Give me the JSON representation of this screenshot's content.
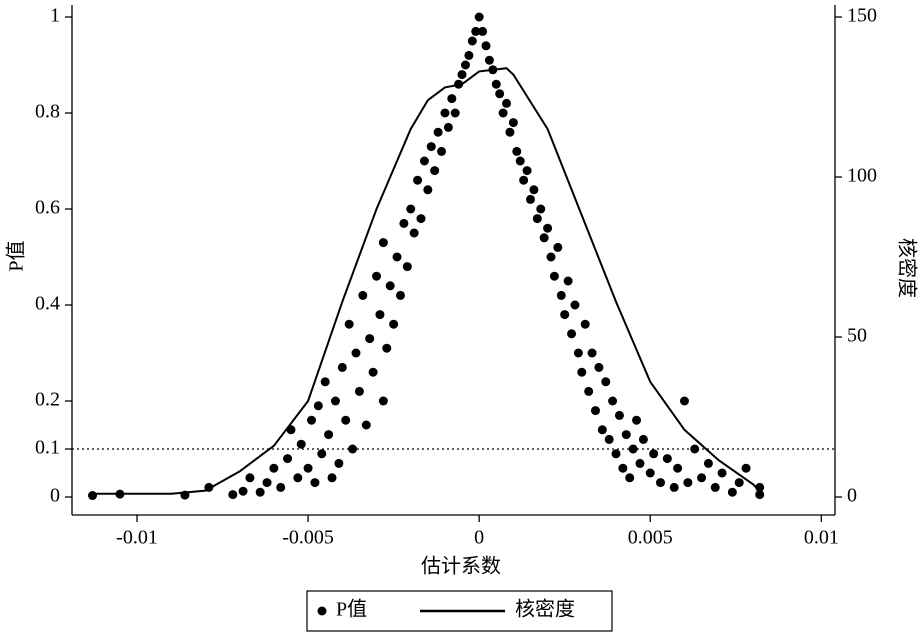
{
  "chart_data": {
    "type": "scatter",
    "x_label": "估计系数",
    "y_label": "P值",
    "y2_label": "核密度",
    "xlim": [
      -0.0119,
      0.0104
    ],
    "ylim": [
      -0.0375,
      1.025
    ],
    "y2lim": [
      -5.625,
      153.75
    ],
    "xticks": [
      -0.01,
      -0.005,
      0,
      0.005,
      0.01
    ],
    "yticks": [
      0,
      0.1,
      0.2,
      0.4,
      0.6,
      0.8,
      1
    ],
    "y2ticks": [
      0,
      50,
      100,
      150
    ],
    "reference_line": 0.1,
    "series": [
      {
        "name": "P值",
        "color": "#000000",
        "x": [
          -0.0113,
          -0.0105,
          -0.0086,
          -0.0079,
          -0.0072,
          -0.0069,
          -0.0067,
          -0.0064,
          -0.0062,
          -0.006,
          -0.0058,
          -0.0056,
          -0.0055,
          -0.0053,
          -0.0052,
          -0.005,
          -0.0049,
          -0.0048,
          -0.0047,
          -0.0046,
          -0.0045,
          -0.0044,
          -0.0043,
          -0.0042,
          -0.0041,
          -0.004,
          -0.0039,
          -0.0038,
          -0.0037,
          -0.0036,
          -0.0035,
          -0.0034,
          -0.0033,
          -0.0032,
          -0.0031,
          -0.003,
          -0.0029,
          -0.0028,
          -0.0028,
          -0.0027,
          -0.0026,
          -0.0025,
          -0.0024,
          -0.0023,
          -0.0022,
          -0.0021,
          -0.002,
          -0.0019,
          -0.0018,
          -0.0017,
          -0.0016,
          -0.0015,
          -0.0014,
          -0.0013,
          -0.0012,
          -0.0011,
          -0.001,
          -0.0009,
          -0.0008,
          -0.0007,
          -0.0006,
          -0.0005,
          -0.0004,
          -0.0003,
          -0.0002,
          -0.0001,
          0,
          0.0001,
          0.0002,
          0.0003,
          0.0004,
          0.0005,
          0.0006,
          0.0007,
          0.0008,
          0.0009,
          0.001,
          0.0011,
          0.0012,
          0.0013,
          0.0014,
          0.0015,
          0.0016,
          0.0017,
          0.0018,
          0.0019,
          0.002,
          0.0021,
          0.0022,
          0.0023,
          0.0024,
          0.0025,
          0.0026,
          0.0027,
          0.0028,
          0.0029,
          0.003,
          0.0031,
          0.0032,
          0.0033,
          0.0034,
          0.0035,
          0.0036,
          0.0037,
          0.0038,
          0.0039,
          0.004,
          0.0041,
          0.0042,
          0.0043,
          0.0044,
          0.0045,
          0.0046,
          0.0047,
          0.0048,
          0.005,
          0.0051,
          0.0053,
          0.0055,
          0.0057,
          0.0058,
          0.006,
          0.0061,
          0.0063,
          0.0065,
          0.0067,
          0.0069,
          0.0071,
          0.0074,
          0.0076,
          0.0078,
          0.0082,
          0.0082
        ],
        "values": [
          0.003,
          0.006,
          0.004,
          0.02,
          0.005,
          0.012,
          0.04,
          0.01,
          0.03,
          0.06,
          0.02,
          0.08,
          0.14,
          0.04,
          0.11,
          0.06,
          0.16,
          0.03,
          0.19,
          0.09,
          0.24,
          0.13,
          0.04,
          0.2,
          0.07,
          0.27,
          0.16,
          0.36,
          0.1,
          0.3,
          0.22,
          0.42,
          0.15,
          0.33,
          0.26,
          0.46,
          0.38,
          0.2,
          0.53,
          0.31,
          0.44,
          0.36,
          0.5,
          0.42,
          0.57,
          0.48,
          0.6,
          0.55,
          0.66,
          0.58,
          0.7,
          0.64,
          0.73,
          0.68,
          0.76,
          0.72,
          0.8,
          0.77,
          0.83,
          0.8,
          0.86,
          0.88,
          0.9,
          0.92,
          0.95,
          0.97,
          1,
          0.97,
          0.94,
          0.91,
          0.89,
          0.86,
          0.84,
          0.8,
          0.82,
          0.76,
          0.78,
          0.72,
          0.7,
          0.66,
          0.68,
          0.62,
          0.64,
          0.58,
          0.6,
          0.54,
          0.56,
          0.5,
          0.46,
          0.52,
          0.42,
          0.38,
          0.45,
          0.34,
          0.4,
          0.3,
          0.26,
          0.36,
          0.22,
          0.3,
          0.18,
          0.27,
          0.14,
          0.24,
          0.12,
          0.2,
          0.09,
          0.17,
          0.06,
          0.13,
          0.04,
          0.1,
          0.16,
          0.07,
          0.12,
          0.05,
          0.09,
          0.03,
          0.08,
          0.02,
          0.06,
          0.2,
          0.03,
          0.1,
          0.04,
          0.07,
          0.02,
          0.05,
          0.01,
          0.03,
          0.06,
          0.02,
          0.005
        ]
      },
      {
        "name": "核密度",
        "color": "#000000",
        "type": "line",
        "axis": "y2",
        "x": [
          -0.0113,
          -0.009,
          -0.008,
          -0.007,
          -0.006,
          -0.005,
          -0.004,
          -0.003,
          -0.002,
          -0.0015,
          -0.001,
          -0.0005,
          0,
          0.0008,
          0.001,
          0.002,
          0.003,
          0.004,
          0.005,
          0.006,
          0.007,
          0.008,
          0.0082
        ],
        "values": [
          1,
          1,
          2,
          8,
          16,
          30,
          61,
          90,
          115,
          124,
          128,
          129,
          133,
          134,
          132,
          115,
          88,
          61,
          36,
          21,
          11.5,
          4,
          2
        ]
      }
    ]
  }
}
